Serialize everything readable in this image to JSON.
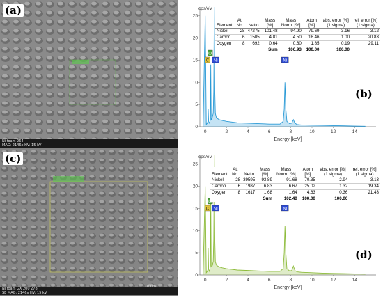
{
  "panels": {
    "a": {
      "label": "(a)",
      "footer_line1": "Ni foam 264",
      "footer_line2": "MAG: 2146x    HV: 15 kV",
      "scalebar": "10 µm"
    },
    "c": {
      "label": "(c)",
      "footer_line1": "Ni foam GX 200 278",
      "footer_line2": "SE    MAG: 2146x    HV: 15 kV",
      "scalebar": "10 µm"
    },
    "b": {
      "label": "(b)",
      "table": {
        "headers": [
          "Element",
          "At. No.",
          "Netto",
          "Mass [%]",
          "Mass Norm. [%]",
          "Atom [%]",
          "abs. error [%] (1 sigma)",
          "rel. error [%] (1 sigma)"
        ],
        "rows": [
          [
            "Nickel",
            "28",
            "47275",
            "101.48",
            "94.90",
            "79.69",
            "3.16",
            "3.12"
          ],
          [
            "Carbon",
            "6",
            "1505",
            "4.81",
            "4.50",
            "18.46",
            "1.00",
            "20.83"
          ],
          [
            "Oxygen",
            "8",
            "692",
            "0.64",
            "0.60",
            "1.85",
            "0.19",
            "29.11"
          ]
        ],
        "sum_label": "Sum",
        "sum_values": [
          "106.93",
          "100.00",
          "100.00"
        ]
      }
    },
    "d": {
      "label": "(d)",
      "table": {
        "headers": [
          "Element",
          "At. No.",
          "Netto",
          "Mass [%]",
          "Mass Norm. [%]",
          "Atom [%]",
          "abs. error [%] (1 sigma)",
          "rel. error [%] (1 sigma)"
        ],
        "rows": [
          [
            "Nickel",
            "28",
            "39595",
            "93.89",
            "91.68",
            "70.35",
            "2.94",
            "3.13"
          ],
          [
            "Carbon",
            "6",
            "1987",
            "6.83",
            "6.67",
            "25.02",
            "1.32",
            "19.34"
          ],
          [
            "Oxygen",
            "8",
            "1617",
            "1.68",
            "1.64",
            "4.63",
            "0.36",
            "21.43"
          ]
        ],
        "sum_label": "Sum",
        "sum_values": [
          "102.40",
          "100.00",
          "100.00"
        ]
      }
    }
  },
  "colors": {
    "spectrum_b": "#2a9ad6",
    "spectrum_d": "#8dbb3a",
    "badge_o": "#4aa33a",
    "badge_c": "#e0c23a",
    "badge_ni": "#2d4bd6"
  },
  "chart_data": [
    {
      "type": "line",
      "panel": "b",
      "ylabel": "cps/eV",
      "xlabel": "Energy [keV]",
      "xlim": [
        -0.5,
        16
      ],
      "ylim": [
        0,
        27
      ],
      "xticks": [
        0,
        2,
        4,
        6,
        8,
        10,
        12,
        14
      ],
      "yticks": [
        0,
        5,
        10,
        15,
        20,
        25
      ],
      "peak_labels": [
        {
          "text": "O",
          "x": 0.52
        },
        {
          "text": "C",
          "x": 0.28
        },
        {
          "text": "Ni",
          "x": 0.85
        },
        {
          "text": "Ni",
          "x": 7.47
        }
      ],
      "series": [
        {
          "x": [
            -0.2,
            0.0,
            0.1,
            0.2,
            0.25,
            0.28,
            0.32,
            0.4,
            0.48,
            0.52,
            0.56,
            0.65,
            0.75,
            0.8,
            0.85,
            0.9,
            0.95,
            1.05,
            1.3,
            1.6,
            2.0,
            3.0,
            4.0,
            5.0,
            6.0,
            7.0,
            7.3,
            7.4,
            7.47,
            7.55,
            7.65,
            7.9,
            8.1,
            8.26,
            8.4,
            8.6,
            9.0,
            10.0,
            11.0,
            12.0,
            13.0,
            14.0,
            15.0
          ],
          "y": [
            0,
            25,
            0.5,
            0.8,
            1.2,
            4,
            1.2,
            0.8,
            1.5,
            14,
            1.5,
            2,
            3,
            8,
            27,
            8,
            3,
            2,
            1.6,
            1.4,
            1.2,
            0.9,
            0.8,
            0.7,
            0.6,
            0.6,
            1.2,
            4,
            10,
            4,
            1.2,
            0.7,
            0.8,
            1.6,
            0.8,
            0.5,
            0.4,
            0.35,
            0.3,
            0.25,
            0.2,
            0.15,
            0.1
          ]
        }
      ]
    },
    {
      "type": "line",
      "panel": "d",
      "ylabel": "cps/eV",
      "xlabel": "Energy [keV]",
      "xlim": [
        -0.5,
        16
      ],
      "ylim": [
        0,
        27
      ],
      "xticks": [
        0,
        2,
        4,
        6,
        8,
        10,
        12,
        14
      ],
      "yticks": [
        0,
        5,
        10,
        15,
        20,
        25
      ],
      "peak_labels": [
        {
          "text": "O",
          "x": 0.52
        },
        {
          "text": "C",
          "x": 0.28
        },
        {
          "text": "Ni",
          "x": 0.85
        },
        {
          "text": "Ni",
          "x": 7.47
        }
      ],
      "series": [
        {
          "x": [
            -0.2,
            0.0,
            0.1,
            0.2,
            0.25,
            0.28,
            0.32,
            0.4,
            0.48,
            0.52,
            0.56,
            0.65,
            0.75,
            0.8,
            0.85,
            0.9,
            0.95,
            1.05,
            1.3,
            1.6,
            2.0,
            3.0,
            4.0,
            5.0,
            6.0,
            7.0,
            7.3,
            7.4,
            7.47,
            7.55,
            7.65,
            7.9,
            8.1,
            8.26,
            8.4,
            8.6,
            9.0,
            10.0,
            11.0,
            12.0,
            13.0,
            14.0,
            15.0
          ],
          "y": [
            0,
            20,
            0.5,
            0.8,
            1.2,
            6,
            1.2,
            0.8,
            2,
            18,
            2,
            2,
            3,
            8,
            27,
            8,
            3,
            2.2,
            1.8,
            1.6,
            1.4,
            1.1,
            1.0,
            0.9,
            0.8,
            0.8,
            1.4,
            5,
            11,
            5,
            1.4,
            0.9,
            1.0,
            2.0,
            1.0,
            0.7,
            0.6,
            0.5,
            0.4,
            0.35,
            0.3,
            0.25,
            0.2
          ]
        }
      ]
    }
  ]
}
